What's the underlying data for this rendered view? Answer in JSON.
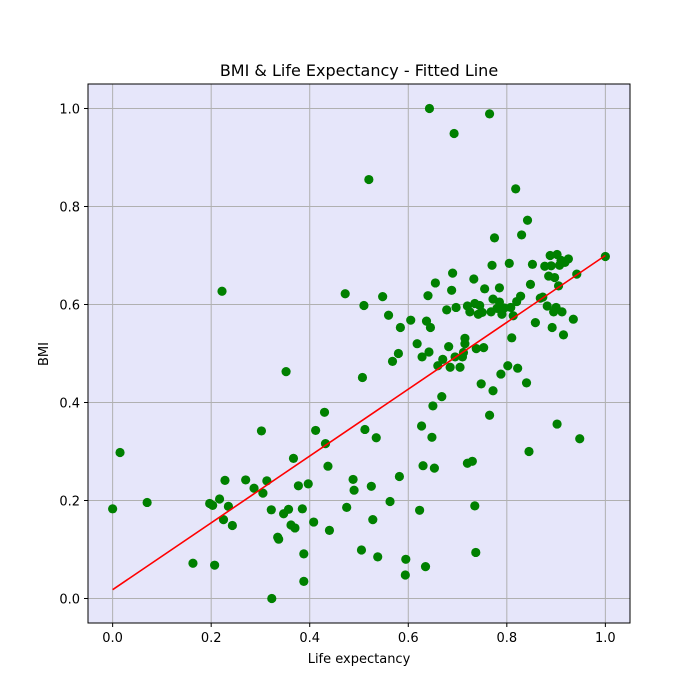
{
  "chart_data": {
    "type": "scatter",
    "title": "BMI & Life Expectancy - Fitted Line",
    "xlabel": "Life expectancy",
    "ylabel": "BMI",
    "xlim": [
      -0.05,
      1.05
    ],
    "ylim": [
      -0.05,
      1.05
    ],
    "xticks": [
      "0.0",
      "0.2",
      "0.4",
      "0.6",
      "0.8",
      "1.0"
    ],
    "yticks": [
      "0.0",
      "0.2",
      "0.4",
      "0.6",
      "0.8",
      "1.0"
    ],
    "grid": true,
    "legend": "none",
    "colors": {
      "plot_background": "#e6e6fa",
      "points": "#008000",
      "fit_line": "#ff0000",
      "grid": "#b0b0b0"
    },
    "fit_line": {
      "x": [
        0.0,
        1.0
      ],
      "y": [
        0.018,
        0.7
      ]
    },
    "points": [
      [
        0.0,
        0.183
      ],
      [
        0.015,
        0.298
      ],
      [
        0.07,
        0.196
      ],
      [
        0.163,
        0.072
      ],
      [
        0.197,
        0.194
      ],
      [
        0.203,
        0.19
      ],
      [
        0.207,
        0.068
      ],
      [
        0.217,
        0.203
      ],
      [
        0.222,
        0.627
      ],
      [
        0.225,
        0.161
      ],
      [
        0.228,
        0.241
      ],
      [
        0.235,
        0.188
      ],
      [
        0.243,
        0.149
      ],
      [
        0.27,
        0.242
      ],
      [
        0.287,
        0.225
      ],
      [
        0.302,
        0.342
      ],
      [
        0.305,
        0.215
      ],
      [
        0.313,
        0.24
      ],
      [
        0.322,
        0.181
      ],
      [
        0.323,
        0.0
      ],
      [
        0.335,
        0.125
      ],
      [
        0.337,
        0.121
      ],
      [
        0.347,
        0.173
      ],
      [
        0.352,
        0.463
      ],
      [
        0.357,
        0.182
      ],
      [
        0.362,
        0.15
      ],
      [
        0.367,
        0.286
      ],
      [
        0.37,
        0.144
      ],
      [
        0.377,
        0.23
      ],
      [
        0.385,
        0.183
      ],
      [
        0.388,
        0.091
      ],
      [
        0.388,
        0.035
      ],
      [
        0.397,
        0.234
      ],
      [
        0.408,
        0.156
      ],
      [
        0.412,
        0.343
      ],
      [
        0.43,
        0.38
      ],
      [
        0.432,
        0.316
      ],
      [
        0.437,
        0.27
      ],
      [
        0.44,
        0.139
      ],
      [
        0.472,
        0.622
      ],
      [
        0.475,
        0.186
      ],
      [
        0.488,
        0.243
      ],
      [
        0.49,
        0.221
      ],
      [
        0.505,
        0.099
      ],
      [
        0.507,
        0.451
      ],
      [
        0.51,
        0.598
      ],
      [
        0.512,
        0.345
      ],
      [
        0.52,
        0.855
      ],
      [
        0.525,
        0.229
      ],
      [
        0.528,
        0.161
      ],
      [
        0.535,
        0.328
      ],
      [
        0.538,
        0.085
      ],
      [
        0.548,
        0.616
      ],
      [
        0.56,
        0.578
      ],
      [
        0.563,
        0.198
      ],
      [
        0.568,
        0.484
      ],
      [
        0.58,
        0.5
      ],
      [
        0.582,
        0.249
      ],
      [
        0.584,
        0.553
      ],
      [
        0.594,
        0.048
      ],
      [
        0.595,
        0.08
      ],
      [
        0.605,
        0.568
      ],
      [
        0.618,
        0.52
      ],
      [
        0.623,
        0.18
      ],
      [
        0.627,
        0.352
      ],
      [
        0.628,
        0.493
      ],
      [
        0.63,
        0.271
      ],
      [
        0.635,
        0.065
      ],
      [
        0.637,
        0.566
      ],
      [
        0.64,
        0.618
      ],
      [
        0.642,
        0.503
      ],
      [
        0.643,
        1.0
      ],
      [
        0.645,
        0.553
      ],
      [
        0.648,
        0.329
      ],
      [
        0.65,
        0.393
      ],
      [
        0.653,
        0.266
      ],
      [
        0.655,
        0.644
      ],
      [
        0.66,
        0.475
      ],
      [
        0.668,
        0.412
      ],
      [
        0.67,
        0.488
      ],
      [
        0.678,
        0.589
      ],
      [
        0.682,
        0.514
      ],
      [
        0.685,
        0.472
      ],
      [
        0.688,
        0.629
      ],
      [
        0.69,
        0.664
      ],
      [
        0.693,
        0.949
      ],
      [
        0.695,
        0.493
      ],
      [
        0.697,
        0.594
      ],
      [
        0.705,
        0.472
      ],
      [
        0.71,
        0.493
      ],
      [
        0.712,
        0.502
      ],
      [
        0.715,
        0.531
      ],
      [
        0.715,
        0.52
      ],
      [
        0.72,
        0.597
      ],
      [
        0.72,
        0.276
      ],
      [
        0.725,
        0.585
      ],
      [
        0.73,
        0.28
      ],
      [
        0.733,
        0.652
      ],
      [
        0.735,
        0.189
      ],
      [
        0.735,
        0.602
      ],
      [
        0.737,
        0.094
      ],
      [
        0.738,
        0.51
      ],
      [
        0.742,
        0.58
      ],
      [
        0.745,
        0.598
      ],
      [
        0.748,
        0.438
      ],
      [
        0.75,
        0.584
      ],
      [
        0.753,
        0.512
      ],
      [
        0.755,
        0.632
      ],
      [
        0.765,
        0.989
      ],
      [
        0.765,
        0.374
      ],
      [
        0.768,
        0.585
      ],
      [
        0.77,
        0.68
      ],
      [
        0.772,
        0.611
      ],
      [
        0.772,
        0.424
      ],
      [
        0.775,
        0.736
      ],
      [
        0.78,
        0.592
      ],
      [
        0.785,
        0.605
      ],
      [
        0.785,
        0.634
      ],
      [
        0.788,
        0.458
      ],
      [
        0.79,
        0.58
      ],
      [
        0.795,
        0.593
      ],
      [
        0.802,
        0.475
      ],
      [
        0.805,
        0.684
      ],
      [
        0.808,
        0.594
      ],
      [
        0.81,
        0.532
      ],
      [
        0.813,
        0.577
      ],
      [
        0.818,
        0.836
      ],
      [
        0.82,
        0.606
      ],
      [
        0.822,
        0.47
      ],
      [
        0.828,
        0.617
      ],
      [
        0.83,
        0.742
      ],
      [
        0.84,
        0.44
      ],
      [
        0.842,
        0.772
      ],
      [
        0.845,
        0.3
      ],
      [
        0.848,
        0.641
      ],
      [
        0.852,
        0.682
      ],
      [
        0.858,
        0.563
      ],
      [
        0.868,
        0.613
      ],
      [
        0.873,
        0.615
      ],
      [
        0.877,
        0.678
      ],
      [
        0.882,
        0.597
      ],
      [
        0.885,
        0.658
      ],
      [
        0.888,
        0.7
      ],
      [
        0.89,
        0.679
      ],
      [
        0.892,
        0.553
      ],
      [
        0.895,
        0.585
      ],
      [
        0.897,
        0.655
      ],
      [
        0.9,
        0.594
      ],
      [
        0.902,
        0.356
      ],
      [
        0.902,
        0.702
      ],
      [
        0.905,
        0.638
      ],
      [
        0.907,
        0.68
      ],
      [
        0.91,
        0.69
      ],
      [
        0.912,
        0.585
      ],
      [
        0.915,
        0.538
      ],
      [
        0.918,
        0.686
      ],
      [
        0.925,
        0.693
      ],
      [
        0.935,
        0.57
      ],
      [
        0.942,
        0.662
      ],
      [
        0.948,
        0.326
      ],
      [
        1.0,
        0.698
      ]
    ]
  }
}
